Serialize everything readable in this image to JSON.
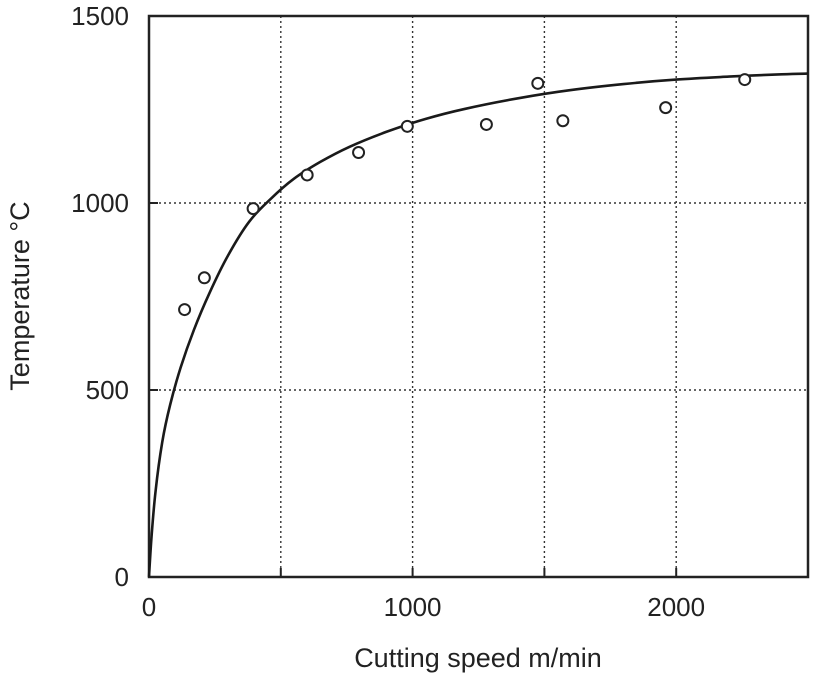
{
  "chart_data": {
    "type": "scatter",
    "xlabel": "Cutting speed  m/min",
    "ylabel": "Temperature °C",
    "xlim": [
      0,
      2500
    ],
    "ylim": [
      0,
      1500
    ],
    "x_ticks": [
      0,
      500,
      1000,
      1500,
      2000,
      2500
    ],
    "y_ticks": [
      0,
      500,
      1000,
      1500
    ],
    "x_tick_labels": [
      "0",
      "1000",
      "2000"
    ],
    "y_tick_labels": [
      "0",
      "500",
      "1000",
      "1500"
    ],
    "grid": true,
    "series": [
      {
        "kind": "points",
        "marker": "open-circle",
        "x": [
          135,
          210,
          395,
          600,
          795,
          980,
          1280,
          1475,
          1570,
          1960,
          2260
        ],
        "y": [
          715,
          800,
          985,
          1075,
          1135,
          1205,
          1210,
          1320,
          1220,
          1255,
          1330
        ]
      },
      {
        "kind": "line",
        "x": [
          0,
          10,
          25,
          50,
          80,
          120,
          170,
          230,
          300,
          380,
          460,
          550,
          650,
          760,
          900,
          1050,
          1200,
          1400,
          1600,
          1800,
          2000,
          2200,
          2400,
          2500
        ],
        "y": [
          0,
          110,
          230,
          360,
          460,
          560,
          660,
          760,
          860,
          950,
          1010,
          1065,
          1110,
          1150,
          1190,
          1225,
          1252,
          1280,
          1302,
          1318,
          1330,
          1338,
          1344,
          1346
        ]
      }
    ]
  }
}
